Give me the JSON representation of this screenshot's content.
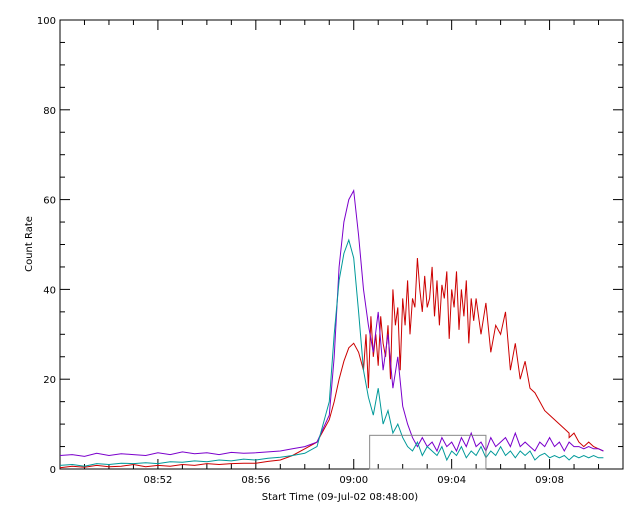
{
  "chart_data": {
    "type": "line",
    "xlabel": "Start Time (09-Jul-02 08:48:00)",
    "ylabel": "Count Rate",
    "ylim": [
      0,
      100
    ],
    "xlim_minutes_after_0848": [
      0,
      23
    ],
    "y_ticks": [
      "0",
      "20",
      "40",
      "60",
      "80",
      "100"
    ],
    "x_ticks": [
      {
        "label": "08:52",
        "t": 4
      },
      {
        "label": "08:56",
        "t": 8
      },
      {
        "label": "09:00",
        "t": 12
      },
      {
        "label": "09:04",
        "t": 16
      },
      {
        "label": "09:08",
        "t": 20
      }
    ],
    "series": [
      {
        "color": "#cc0000",
        "x": [
          0,
          0.5,
          1,
          1.5,
          2,
          2.5,
          3,
          3.5,
          4,
          4.5,
          5,
          5.5,
          6,
          6.5,
          7,
          7.5,
          8,
          8.5,
          9,
          9.5,
          10,
          10.5,
          11,
          11.2,
          11.4,
          11.6,
          11.8,
          12,
          12.2,
          12.4,
          12.5,
          12.6,
          12.7,
          12.8,
          12.9,
          13,
          13.1,
          13.2,
          13.3,
          13.4,
          13.5,
          13.6,
          13.7,
          13.8,
          13.9,
          14,
          14.1,
          14.2,
          14.3,
          14.4,
          14.5,
          14.6,
          14.7,
          14.8,
          14.9,
          15,
          15.1,
          15.2,
          15.3,
          15.4,
          15.5,
          15.6,
          15.7,
          15.8,
          15.9,
          16,
          16.1,
          16.2,
          16.3,
          16.4,
          16.5,
          16.6,
          16.7,
          16.8,
          16.9,
          17,
          17.2,
          17.4,
          17.6,
          17.8,
          18,
          18.2,
          18.4,
          18.6,
          18.8,
          19,
          19.2,
          19.4,
          19.6,
          19.8,
          20,
          20.2,
          20.4,
          20.6,
          20.8
        ],
        "y": [
          0.3,
          0.6,
          0.4,
          0.8,
          0.5,
          0.6,
          1.0,
          0.5,
          0.8,
          0.6,
          1.0,
          0.8,
          1.2,
          1.0,
          1.2,
          1.3,
          1.3,
          1.7,
          2.0,
          3.0,
          4.5,
          6.0,
          11,
          15,
          20,
          24,
          27,
          28,
          26,
          22,
          30,
          18,
          34,
          25,
          30,
          23,
          34,
          28,
          25,
          32,
          20,
          40,
          32,
          36,
          22,
          38,
          32,
          42,
          30,
          38,
          36,
          47,
          40,
          35,
          43,
          36,
          38,
          45,
          34,
          42,
          32,
          41,
          38,
          44,
          29,
          40,
          36,
          44,
          31,
          40,
          34,
          42,
          28,
          38,
          33,
          38,
          30,
          37,
          26,
          32,
          30,
          35,
          22,
          28,
          20,
          24,
          18,
          17,
          15,
          13,
          12,
          11,
          10,
          9,
          8
        ],
        "note_continuation": [
          20.8,
          21,
          21.2,
          21.4,
          21.6,
          21.8,
          22,
          22.2
        ],
        "note_continuation_y": [
          7,
          8,
          6,
          5,
          6,
          5,
          4.5,
          4
        ]
      },
      {
        "color": "#7b00cc",
        "x": [
          0,
          0.5,
          1,
          1.5,
          2,
          2.5,
          3,
          3.5,
          4,
          4.5,
          5,
          5.5,
          6,
          6.5,
          7,
          7.5,
          8,
          8.5,
          9,
          9.5,
          10,
          10.5,
          11,
          11.2,
          11.4,
          11.6,
          11.8,
          12,
          12.2,
          12.4,
          12.6,
          12.8,
          13,
          13.2,
          13.4,
          13.6,
          13.8,
          14,
          14.2,
          14.4,
          14.6,
          14.8,
          15,
          15.2,
          15.4,
          15.6,
          15.8,
          16,
          16.2,
          16.4,
          16.6,
          16.8,
          17,
          17.2,
          17.4,
          17.6,
          17.8,
          18,
          18.2,
          18.4,
          18.6,
          18.8,
          19,
          19.2,
          19.4,
          19.6,
          19.8,
          20,
          20.2,
          20.4,
          20.6,
          20.8,
          21,
          21.2,
          21.4,
          21.6,
          21.8,
          22,
          22.2
        ],
        "y": [
          3.0,
          3.2,
          2.8,
          3.5,
          3.0,
          3.4,
          3.2,
          3.0,
          3.6,
          3.2,
          3.8,
          3.4,
          3.6,
          3.2,
          3.7,
          3.5,
          3.6,
          3.8,
          4.0,
          4.5,
          5,
          6,
          12,
          25,
          45,
          55,
          60,
          62,
          52,
          40,
          32,
          26,
          35,
          22,
          30,
          18,
          25,
          14,
          10,
          7,
          5,
          7,
          5,
          6,
          4,
          7,
          5,
          6,
          4,
          7,
          5,
          8,
          5,
          6,
          4,
          7,
          5,
          6,
          7,
          5,
          8,
          5,
          6,
          5,
          4,
          6,
          5,
          7,
          5,
          6,
          4,
          6,
          5,
          5,
          4.5,
          5,
          4.5,
          4.5,
          4
        ],
        "note_continuation": [],
        "note_continuation_y": []
      },
      {
        "color": "#009999",
        "x": [
          0,
          0.5,
          1,
          1.5,
          2,
          2.5,
          3,
          3.5,
          4,
          4.5,
          5,
          5.5,
          6,
          6.5,
          7,
          7.5,
          8,
          8.5,
          9,
          9.5,
          10,
          10.5,
          11,
          11.2,
          11.4,
          11.6,
          11.8,
          12,
          12.2,
          12.4,
          12.6,
          12.8,
          13,
          13.2,
          13.4,
          13.6,
          13.8,
          14,
          14.2,
          14.4,
          14.6,
          14.8,
          15,
          15.2,
          15.4,
          15.6,
          15.8,
          16,
          16.2,
          16.4,
          16.6,
          16.8,
          17,
          17.2,
          17.4,
          17.6,
          17.8,
          18,
          18.2,
          18.4,
          18.6,
          18.8,
          19,
          19.2,
          19.4,
          19.6,
          19.8,
          20,
          20.2,
          20.4,
          20.6,
          20.8,
          21,
          21.2,
          21.4,
          21.6,
          21.8,
          22,
          22.2
        ],
        "y": [
          0.8,
          1.0,
          0.6,
          1.2,
          1.0,
          1.3,
          1.2,
          1.4,
          1.2,
          1.6,
          1.5,
          1.8,
          1.6,
          2.0,
          1.8,
          2.2,
          2.0,
          2.4,
          2.6,
          3.0,
          3.5,
          5,
          15,
          30,
          42,
          48,
          51,
          47,
          35,
          22,
          16,
          12,
          18,
          10,
          13,
          8,
          10,
          7,
          5,
          4,
          6,
          3,
          5,
          4,
          3,
          5,
          2,
          4,
          3,
          5,
          2.5,
          4,
          3,
          5,
          2.5,
          4,
          3,
          5,
          3,
          4,
          2.5,
          4,
          3,
          4,
          2,
          3,
          3.5,
          2.5,
          3,
          2.5,
          3,
          2,
          3,
          2.5,
          3,
          2.5,
          3,
          2.5,
          2.5
        ],
        "note_continuation": [],
        "note_continuation_y": []
      }
    ],
    "annotation_box": {
      "t_start": 12.65,
      "t_end": 17.4,
      "y_low": 0,
      "y_high": 7.5
    }
  }
}
